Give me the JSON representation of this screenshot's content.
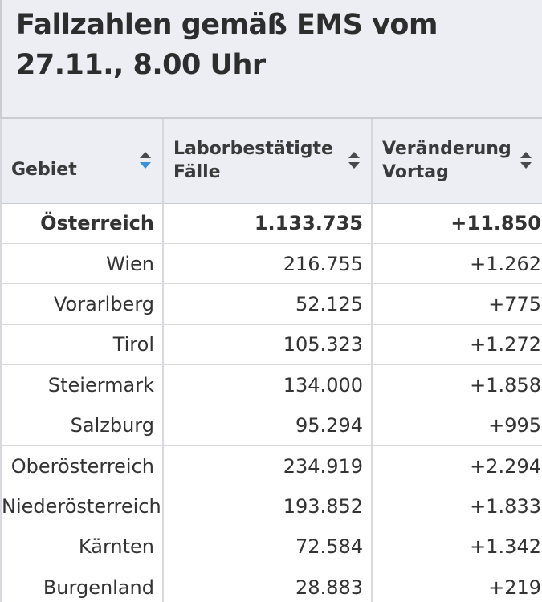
{
  "title": "Fallzahlen gemäß EMS vom 27.11., 8.00 Uhr",
  "columns": [
    {
      "label": "Gebiet",
      "sort_icon": "sort-active-icon"
    },
    {
      "label": "Laborbestätigte Fälle",
      "sort_icon": "sort-icon"
    },
    {
      "label": "Veränderung Vortag",
      "sort_icon": "sort-icon"
    }
  ],
  "rows": [
    {
      "region": "Österreich",
      "cases": "1.133.735",
      "change": "+11.850"
    },
    {
      "region": "Wien",
      "cases": "216.755",
      "change": "+1.262"
    },
    {
      "region": "Vorarlberg",
      "cases": "52.125",
      "change": "+775"
    },
    {
      "region": "Tirol",
      "cases": "105.323",
      "change": "+1.272"
    },
    {
      "region": "Steiermark",
      "cases": "134.000",
      "change": "+1.858"
    },
    {
      "region": "Salzburg",
      "cases": "95.294",
      "change": "+995"
    },
    {
      "region": "Oberösterreich",
      "cases": "234.919",
      "change": "+2.294"
    },
    {
      "region": "Niederösterreich",
      "cases": "193.852",
      "change": "+1.833"
    },
    {
      "region": "Kärnten",
      "cases": "72.584",
      "change": "+1.342"
    },
    {
      "region": "Burgenland",
      "cases": "28.883",
      "change": "+219"
    }
  ],
  "colors": {
    "header_bg": "#eceef3",
    "text": "#333333",
    "sort_active": "#3a8fd9",
    "sort_inactive": "#4a4a4a"
  }
}
